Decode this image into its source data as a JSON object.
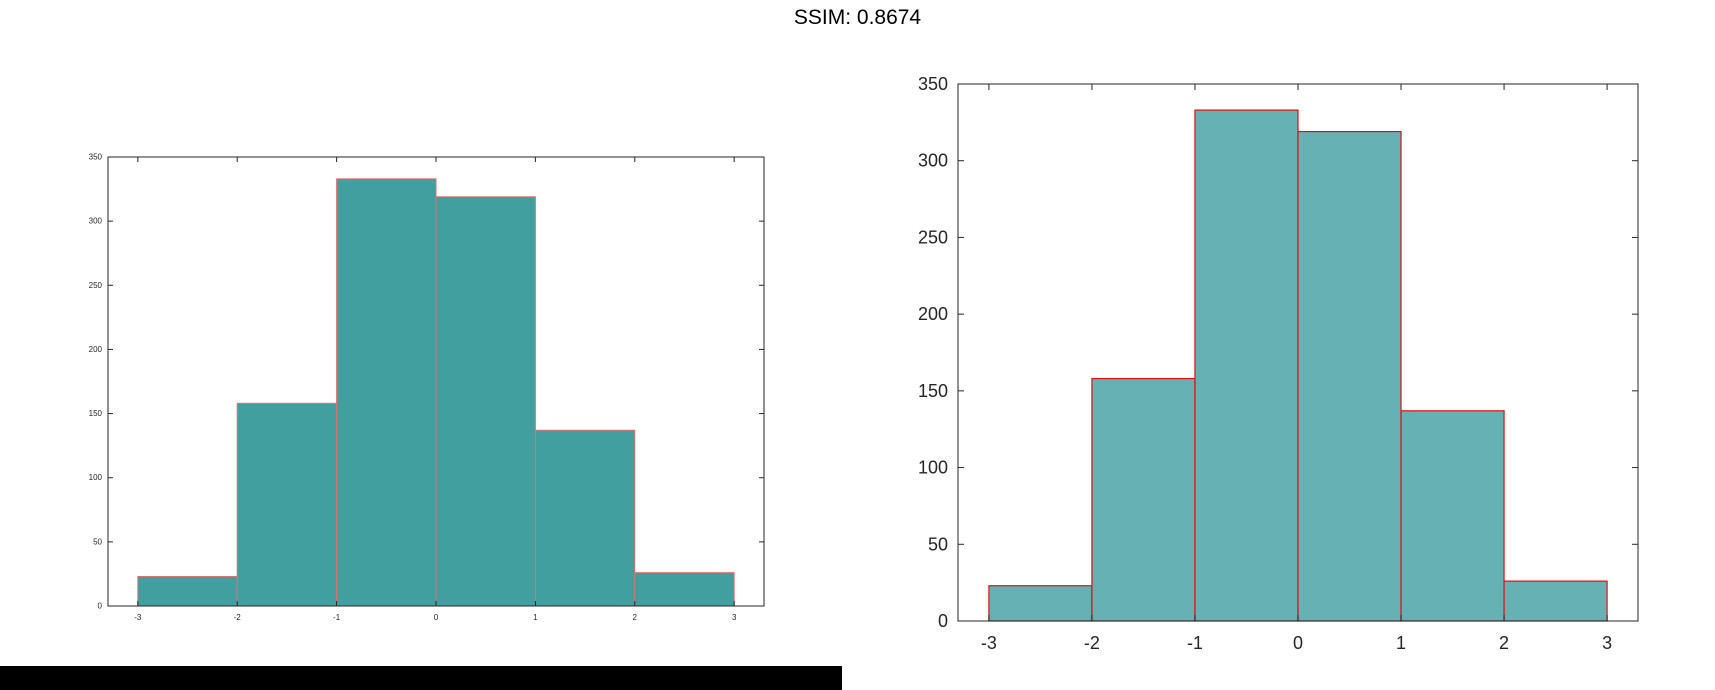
{
  "page": {
    "title": "SSIM: 0.8674"
  },
  "chart_data": [
    {
      "type": "bar",
      "bin_edges": [
        -3,
        -2,
        -1,
        0,
        1,
        2,
        3
      ],
      "values": [
        23,
        158,
        333,
        319,
        137,
        26
      ],
      "xlim": [
        -3.3,
        3.3
      ],
      "ylim": [
        0,
        350
      ],
      "xticks": [
        "-3",
        "-2",
        "-1",
        "0",
        "1",
        "2",
        "3"
      ],
      "yticks": [
        "0",
        "50",
        "100",
        "150",
        "200",
        "250",
        "300",
        "350"
      ],
      "fill_color": "#41a09f",
      "edge_color": "#e07070",
      "grid": false
    },
    {
      "type": "bar",
      "bin_edges": [
        -3,
        -2,
        -1,
        0,
        1,
        2,
        3
      ],
      "values": [
        23,
        158,
        333,
        319,
        137,
        26
      ],
      "xlim": [
        -3.3,
        3.3
      ],
      "ylim": [
        0,
        350
      ],
      "xticks": [
        "-3",
        "-2",
        "-1",
        "0",
        "1",
        "2",
        "3"
      ],
      "yticks": [
        "0",
        "50",
        "100",
        "150",
        "200",
        "250",
        "300",
        "350"
      ],
      "fill_color": "#65b1b3",
      "edge_color": "#e01010",
      "grid": false
    }
  ]
}
